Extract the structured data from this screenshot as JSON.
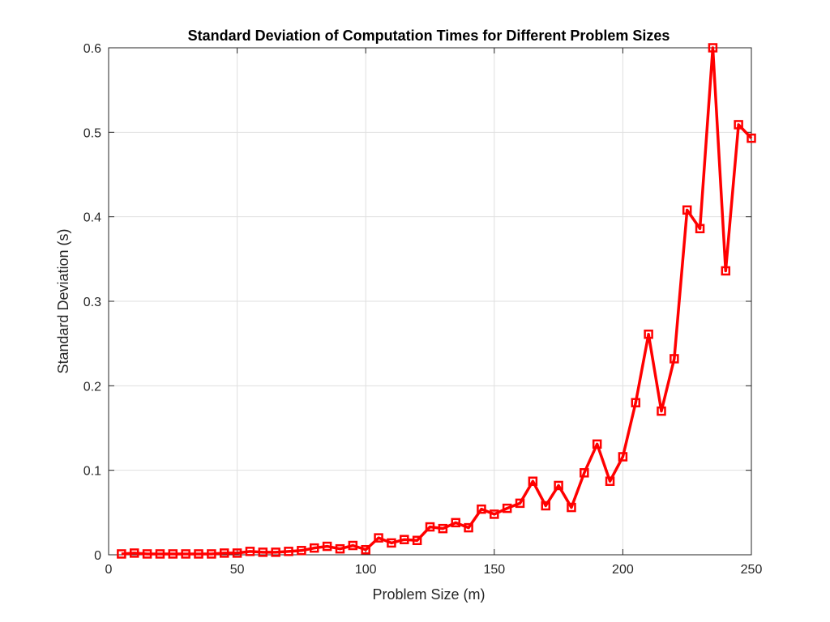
{
  "chart_data": {
    "type": "line",
    "title": "Standard Deviation of Computation Times for Different Problem Sizes",
    "xlabel": "Problem Size (m)",
    "ylabel": "Standard Deviation (s)",
    "xlim": [
      0,
      250
    ],
    "ylim": [
      0,
      0.6
    ],
    "xticks": [
      0,
      50,
      100,
      150,
      200,
      250
    ],
    "yticks": [
      0,
      0.1,
      0.2,
      0.3,
      0.4,
      0.5,
      0.6
    ],
    "xtick_labels": [
      "0",
      "50",
      "100",
      "150",
      "200",
      "250"
    ],
    "ytick_labels": [
      "0",
      "0.1",
      "0.2",
      "0.3",
      "0.4",
      "0.5",
      "0.6"
    ],
    "grid": true,
    "series": [
      {
        "color": "#ff0000",
        "marker": "square",
        "x": [
          5,
          10,
          15,
          20,
          25,
          30,
          35,
          40,
          45,
          50,
          55,
          60,
          65,
          70,
          75,
          80,
          85,
          90,
          95,
          100,
          105,
          110,
          115,
          120,
          125,
          130,
          135,
          140,
          145,
          150,
          155,
          160,
          165,
          170,
          175,
          180,
          185,
          190,
          195,
          200,
          205,
          210,
          215,
          220,
          225,
          230,
          235,
          240,
          245,
          250
        ],
        "y": [
          0.001,
          0.002,
          0.001,
          0.001,
          0.001,
          0.001,
          0.001,
          0.001,
          0.002,
          0.002,
          0.004,
          0.003,
          0.003,
          0.004,
          0.005,
          0.008,
          0.01,
          0.007,
          0.011,
          0.006,
          0.02,
          0.014,
          0.018,
          0.017,
          0.033,
          0.031,
          0.038,
          0.032,
          0.054,
          0.048,
          0.055,
          0.061,
          0.087,
          0.058,
          0.082,
          0.056,
          0.097,
          0.131,
          0.087,
          0.116,
          0.18,
          0.261,
          0.17,
          0.232,
          0.408,
          0.386,
          0.6,
          0.336,
          0.509,
          0.493
        ]
      }
    ]
  }
}
